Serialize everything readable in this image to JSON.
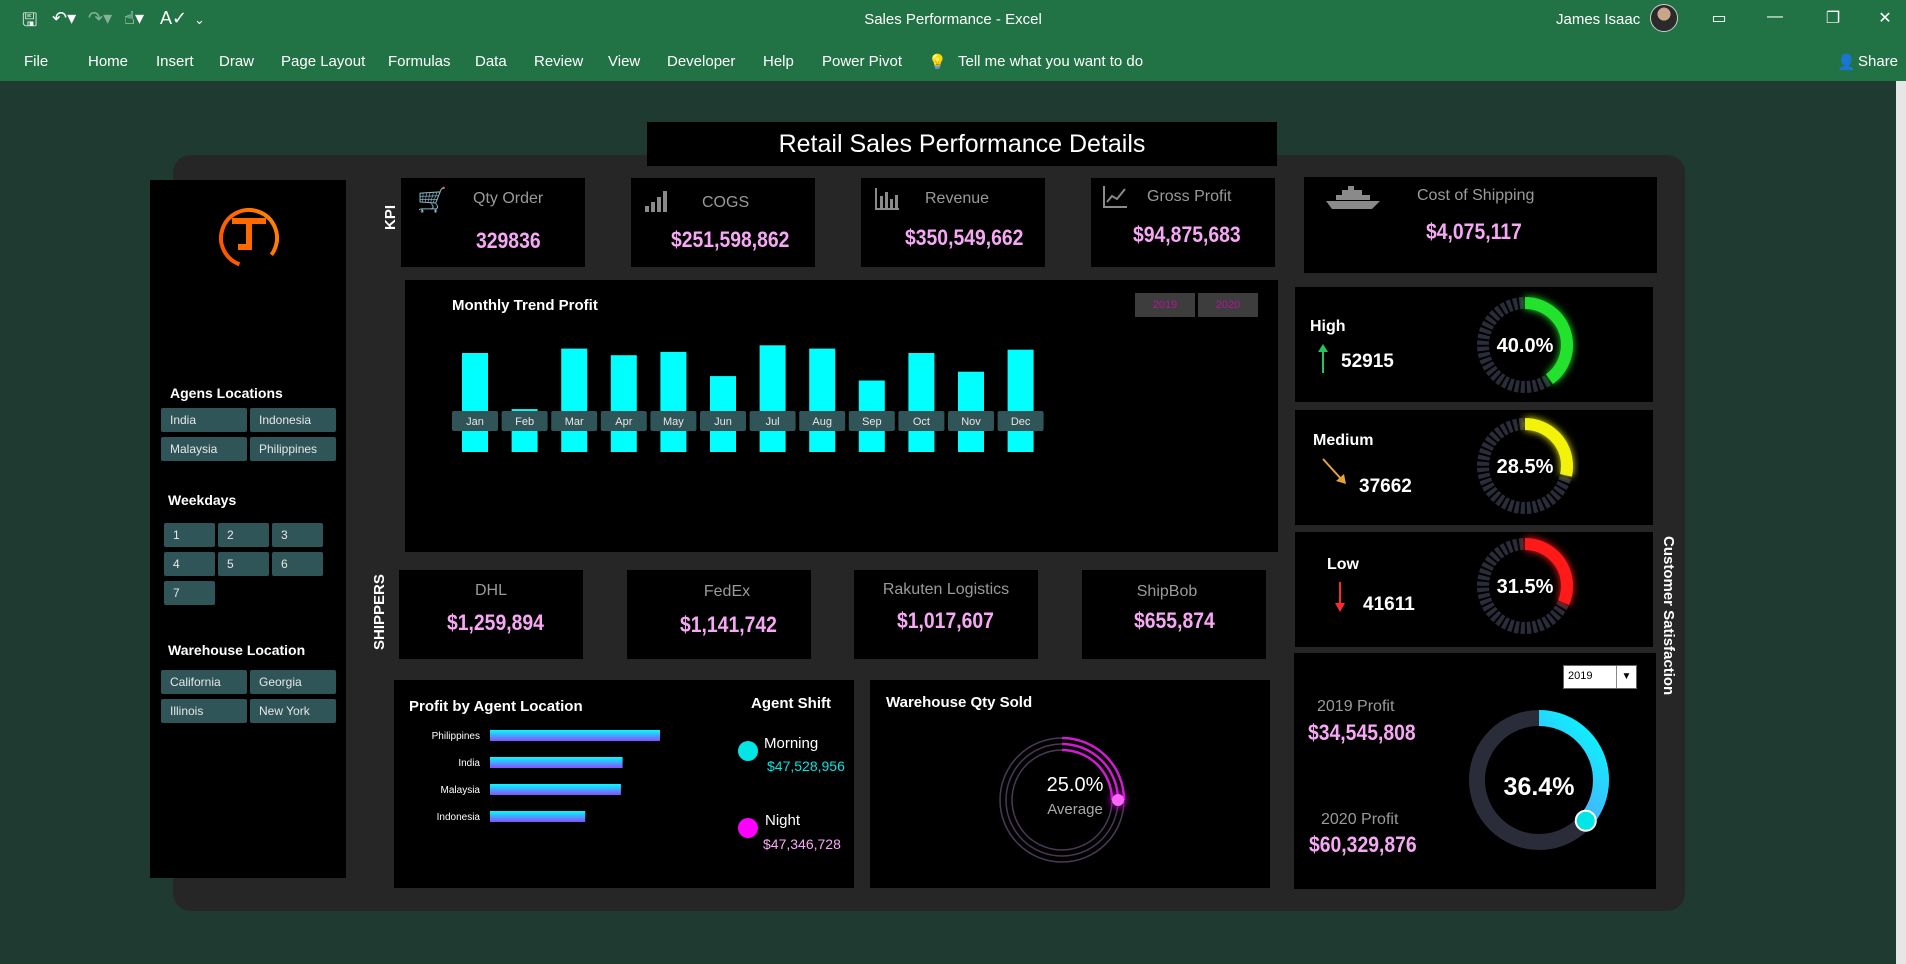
{
  "window": {
    "title": "Sales Performance  -  Excel",
    "user": "James Isaac"
  },
  "menu": [
    "File",
    "Home",
    "Insert",
    "Draw",
    "Page Layout",
    "Formulas",
    "Data",
    "Review",
    "View",
    "Developer",
    "Help",
    "Power Pivot"
  ],
  "tell_me": "Tell me what you want to do",
  "share_label": "Share",
  "dashboard": {
    "title": "Retail Sales Performance Details",
    "kpi_label": "KPI",
    "shippers_label": "SHIPPERS",
    "customer_satisfaction_label": "Customer Satisfaction"
  },
  "sidebar": {
    "agent_locations_title": "Agens Locations",
    "agent_locations": [
      "India",
      "Indonesia",
      "Malaysia",
      "Philippines"
    ],
    "weekdays_title": "Weekdays",
    "weekdays": [
      "1",
      "2",
      "3",
      "4",
      "5",
      "6",
      "7"
    ],
    "warehouse_title": "Warehouse Location",
    "warehouses": [
      "California",
      "Georgia",
      "Illinois",
      "New York"
    ]
  },
  "kpis": [
    {
      "label": "Qty Order",
      "value": "329836",
      "icon": "cart-icon"
    },
    {
      "label": "COGS",
      "value": "$251,598,862",
      "icon": "bar-signal-icon"
    },
    {
      "label": "Revenue",
      "value": "$350,549,662",
      "icon": "bar-chart-icon"
    },
    {
      "label": "Gross Profit",
      "value": "$94,875,683",
      "icon": "line-chart-icon"
    },
    {
      "label": "Cost of Shipping",
      "value": "$4,075,117",
      "icon": "ship-icon"
    }
  ],
  "monthly_trend": {
    "title": "Monthly Trend Profit",
    "year_buttons": [
      "2019",
      "2020"
    ]
  },
  "chart_data": {
    "type": "bar",
    "title": "Monthly Trend Profit",
    "categories": [
      "Jan",
      "Feb",
      "Mar",
      "Apr",
      "May",
      "Jun",
      "Jul",
      "Aug",
      "Sep",
      "Oct",
      "Nov",
      "Dec"
    ],
    "values": [
      90,
      39,
      94,
      88,
      91,
      69,
      97,
      94,
      65,
      90,
      73,
      93
    ],
    "color": "#00ffff"
  },
  "shippers": [
    {
      "name": "DHL",
      "value": "$1,259,894"
    },
    {
      "name": "FedEx",
      "value": "$1,141,742"
    },
    {
      "name": "Rakuten Logistics",
      "value": "$1,017,607"
    },
    {
      "name": "ShipBob",
      "value": "$655,874"
    }
  ],
  "satisfaction": [
    {
      "label": "High",
      "value": "52915",
      "pct": "40.0%",
      "fraction": 0.4,
      "color": "#22e22e",
      "arrow_color": "#22c55e"
    },
    {
      "label": "Medium",
      "value": "37662",
      "pct": "28.5%",
      "fraction": 0.285,
      "color": "#f2f20a",
      "arrow_color": "#e8a23a"
    },
    {
      "label": "Low",
      "value": "41611",
      "pct": "31.5%",
      "fraction": 0.315,
      "color": "#ff1a1a",
      "arrow_color": "#ff2a2a"
    }
  ],
  "profit_by_location": {
    "title": "Profit by Agent Location",
    "categories": [
      "Philippines",
      "India",
      "Malaysia",
      "Indonesia"
    ],
    "values": [
      100,
      78,
      77,
      56
    ]
  },
  "agent_shift": {
    "title": "Agent Shift",
    "items": [
      {
        "label": "Morning",
        "value": "$47,528,956",
        "color": "#00e5e5"
      },
      {
        "label": "Night",
        "value": "$47,346,728",
        "color": "#ff00ff"
      }
    ]
  },
  "warehouse_qty": {
    "title": "Warehouse Qty Sold",
    "pct": "25.0%",
    "fraction": 0.25,
    "sub": "Average"
  },
  "profit_compare": {
    "selected_year": "2019",
    "label_2019": "2019 Profit",
    "value_2019": "$34,545,808",
    "label_2020": "2020 Profit",
    "value_2020": "$60,329,876",
    "pct": "36.4%",
    "fraction": 0.364
  }
}
